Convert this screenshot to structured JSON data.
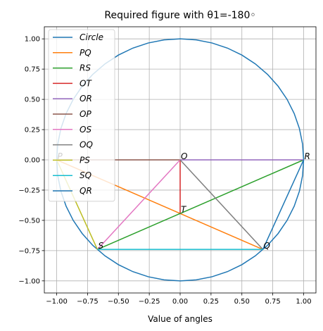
{
  "chart_data": {
    "type": "line",
    "title": "Required figure with θ1=-180◦",
    "xlabel": "Value of angles",
    "ylabel": "",
    "xlim": [
      -1.1,
      1.1
    ],
    "ylim": [
      -1.1,
      1.1
    ],
    "grid": true,
    "legend_position": "top-left",
    "xticks": [
      -1.0,
      -0.75,
      -0.5,
      -0.25,
      0.0,
      0.25,
      0.5,
      0.75,
      1.0
    ],
    "xtick_labels": [
      "−1.00",
      "−0.75",
      "−0.50",
      "−0.25",
      "0.00",
      "0.25",
      "0.50",
      "0.75",
      "1.00"
    ],
    "yticks": [
      1.0,
      0.75,
      0.5,
      0.25,
      0.0,
      -0.25,
      -0.5,
      -0.75,
      -1.0
    ],
    "ytick_labels": [
      "1.00",
      "0.75",
      "0.50",
      "0.25",
      "0.00",
      "−0.25",
      "−0.50",
      "−0.75",
      "−1.00"
    ],
    "circle": {
      "name": "Circle",
      "color": "#1f77b4",
      "center": [
        0,
        0
      ],
      "radius": 1,
      "segments": 48
    },
    "points": [
      {
        "label": "O",
        "x": 0.0,
        "y": 0.0
      },
      {
        "label": "P",
        "x": -1.0,
        "y": 0.0
      },
      {
        "label": "Q",
        "x": 0.67,
        "y": -0.74
      },
      {
        "label": "R",
        "x": 1.0,
        "y": 0.0
      },
      {
        "label": "S",
        "x": -0.67,
        "y": -0.74
      },
      {
        "label": "T",
        "x": 0.0,
        "y": -0.44
      }
    ],
    "series": [
      {
        "name": "PQ",
        "color": "#ff7f0e",
        "x": [
          -1.0,
          0.67
        ],
        "y": [
          0.0,
          -0.74
        ]
      },
      {
        "name": "RS",
        "color": "#2ca02c",
        "x": [
          1.0,
          -0.67
        ],
        "y": [
          0.0,
          -0.74
        ]
      },
      {
        "name": "OT",
        "color": "#d62728",
        "x": [
          0.0,
          0.0
        ],
        "y": [
          0.0,
          -0.44
        ]
      },
      {
        "name": "OR",
        "color": "#9467bd",
        "x": [
          0.0,
          1.0
        ],
        "y": [
          0.0,
          0.0
        ]
      },
      {
        "name": "OP",
        "color": "#8c564b",
        "x": [
          0.0,
          -1.0
        ],
        "y": [
          0.0,
          0.0
        ]
      },
      {
        "name": "OS",
        "color": "#e377c2",
        "x": [
          0.0,
          -0.67
        ],
        "y": [
          0.0,
          -0.74
        ]
      },
      {
        "name": "OQ",
        "color": "#7f7f7f",
        "x": [
          0.0,
          0.67
        ],
        "y": [
          0.0,
          -0.74
        ]
      },
      {
        "name": "PS",
        "color": "#bcbd22",
        "x": [
          -1.0,
          -0.67
        ],
        "y": [
          0.0,
          -0.74
        ]
      },
      {
        "name": "SQ",
        "color": "#17becf",
        "x": [
          -0.67,
          0.67
        ],
        "y": [
          -0.74,
          -0.74
        ]
      },
      {
        "name": "QR",
        "color": "#1f77b4",
        "x": [
          0.67,
          1.0
        ],
        "y": [
          -0.74,
          0.0
        ]
      }
    ]
  }
}
